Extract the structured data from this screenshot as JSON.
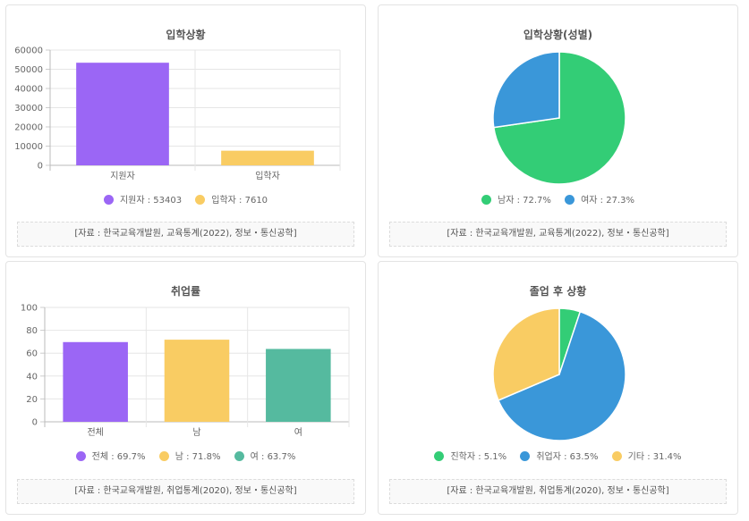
{
  "chart_data": [
    {
      "type": "bar",
      "title": "입학상황",
      "categories": [
        "지원자",
        "입학자"
      ],
      "values": [
        53403,
        7610
      ],
      "colors": [
        "#9b66f5",
        "#f9cc63"
      ],
      "ylim": [
        0,
        60000
      ],
      "yticks": [
        0,
        10000,
        20000,
        30000,
        40000,
        50000,
        60000
      ],
      "legend": [
        "지원자 : 53403",
        "입학자 : 7610"
      ],
      "source": "[자료 : 한국교육개발원, 교육통계(2022), 정보・통신공학]"
    },
    {
      "type": "pie",
      "title": "입학상황(성별)",
      "categories": [
        "남자",
        "여자"
      ],
      "values": [
        72.7,
        27.3
      ],
      "colors": [
        "#33cd76",
        "#3a97d9"
      ],
      "legend": [
        "남자 : 72.7%",
        "여자 : 27.3%"
      ],
      "source": "[자료 : 한국교육개발원, 교육통계(2022), 정보・통신공학]"
    },
    {
      "type": "bar",
      "title": "취업률",
      "categories": [
        "전체",
        "남",
        "여"
      ],
      "values": [
        69.7,
        71.8,
        63.7
      ],
      "colors": [
        "#9b66f5",
        "#f9cc63",
        "#55ba9f"
      ],
      "ylim": [
        0,
        100
      ],
      "yticks": [
        0,
        20,
        40,
        60,
        80,
        100
      ],
      "legend": [
        "전체 : 69.7%",
        "남 : 71.8%",
        "여 : 63.7%"
      ],
      "source": "[자료 : 한국교육개발원, 취업통계(2020), 정보・통신공학]"
    },
    {
      "type": "pie",
      "title": "졸업 후 상황",
      "categories": [
        "진학자",
        "취업자",
        "기타"
      ],
      "values": [
        5.1,
        63.5,
        31.4
      ],
      "colors": [
        "#33cd76",
        "#3a97d9",
        "#f9cc63"
      ],
      "legend": [
        "진학자 : 5.1%",
        "취업자 : 63.5%",
        "기타 : 31.4%"
      ],
      "source": "[자료 : 한국교육개발원, 취업통계(2020), 정보・통신공학]"
    }
  ]
}
